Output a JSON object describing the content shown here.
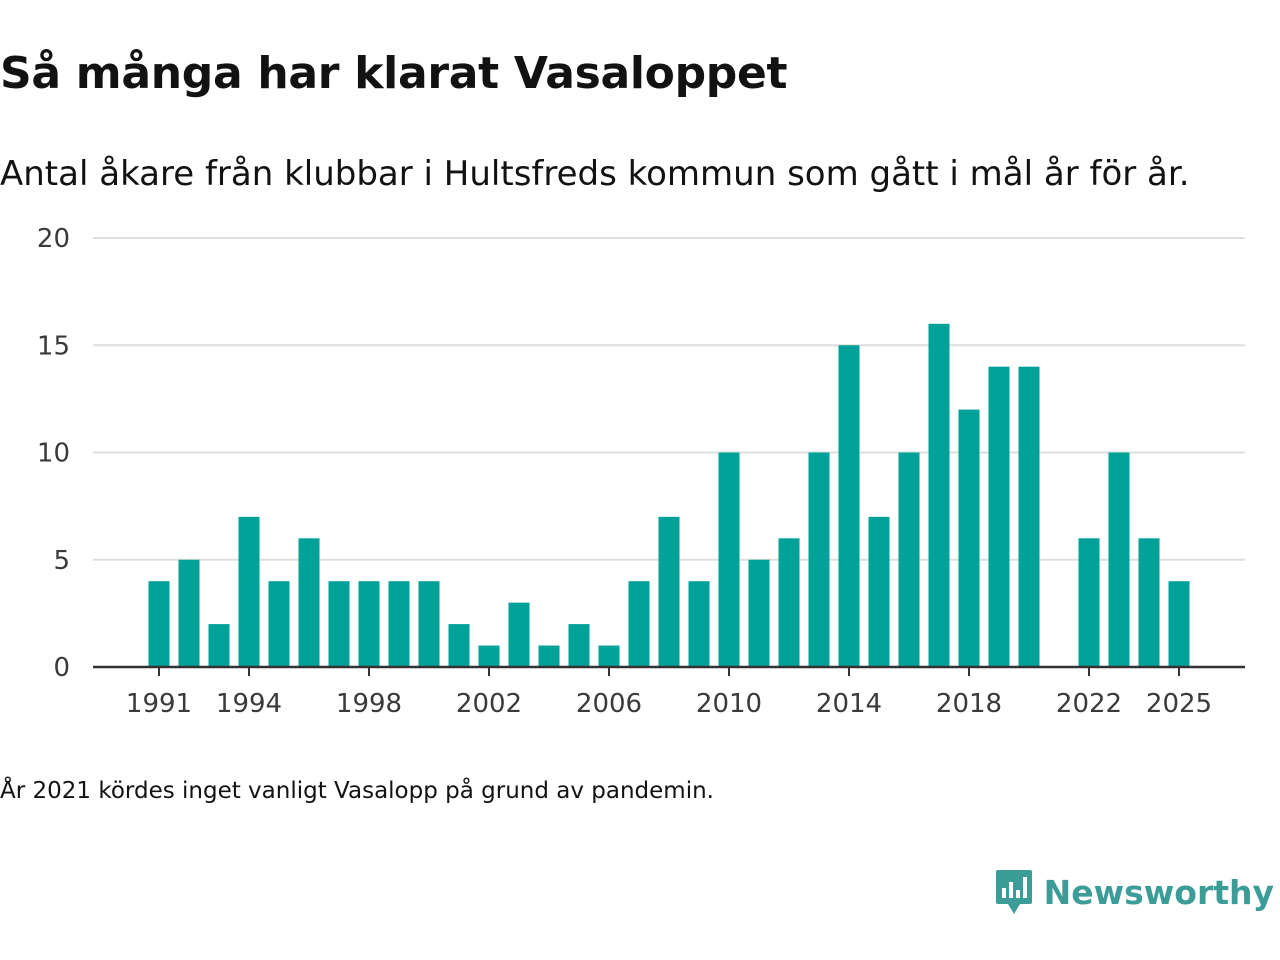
{
  "header": {
    "title": "Så många har klarat Vasaloppet",
    "subtitle": "Antal åkare från klubbar i Hultsfreds kommun som gått i mål år för år."
  },
  "footer": {
    "note": "År 2021 kördes inget vanligt Vasalopp på grund av pandemin.",
    "brand": "Newsworthy",
    "brand_icon": "newsworthy-logo-icon"
  },
  "colors": {
    "bar": "#00a198",
    "grid": "#dedede",
    "axis": "#333333",
    "brand": "#3c9c97"
  },
  "chart_data": {
    "type": "bar",
    "title": "Så många har klarat Vasaloppet",
    "subtitle": "Antal åkare från klubbar i Hultsfreds kommun som gått i mål år för år.",
    "xlabel": "",
    "ylabel": "",
    "ylim": [
      0,
      20
    ],
    "yticks": [
      0,
      5,
      10,
      15,
      20
    ],
    "xticks": [
      1991,
      1994,
      1998,
      2002,
      2006,
      2010,
      2014,
      2018,
      2022,
      2025
    ],
    "grid": true,
    "categories": [
      1991,
      1992,
      1993,
      1994,
      1995,
      1996,
      1997,
      1998,
      1999,
      2000,
      2001,
      2002,
      2003,
      2004,
      2005,
      2006,
      2007,
      2008,
      2009,
      2010,
      2011,
      2012,
      2013,
      2014,
      2015,
      2016,
      2017,
      2018,
      2019,
      2020,
      2021,
      2022,
      2023,
      2024,
      2025
    ],
    "values": [
      4,
      5,
      2,
      7,
      4,
      6,
      4,
      4,
      4,
      4,
      2,
      1,
      3,
      1,
      2,
      1,
      4,
      7,
      4,
      10,
      5,
      6,
      10,
      15,
      7,
      10,
      16,
      12,
      14,
      14,
      null,
      6,
      10,
      6,
      4
    ]
  }
}
